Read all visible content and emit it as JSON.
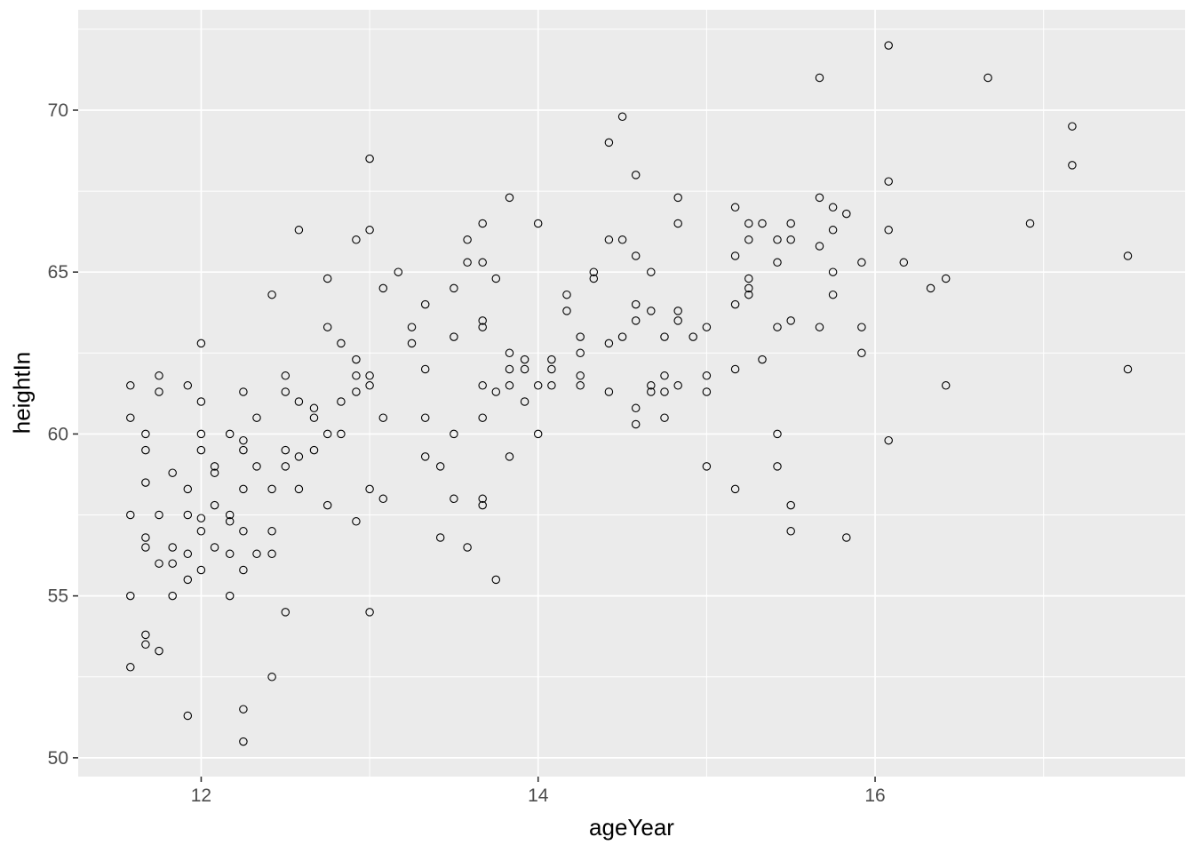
{
  "chart_data": {
    "type": "scatter",
    "title": "",
    "xlabel": "ageYear",
    "ylabel": "heightIn",
    "x_range": [
      11.27,
      17.84
    ],
    "y_range": [
      49.42,
      73.1
    ],
    "x_ticks": [
      12,
      14,
      16
    ],
    "y_ticks": [
      50,
      55,
      60,
      65,
      70
    ],
    "x_minor_ticks": [
      13,
      15,
      17
    ],
    "y_minor_ticks": [
      52.5,
      57.5,
      62.5,
      67.5,
      72.5
    ],
    "grid": true,
    "legend_position": "none",
    "marker": "open-circle",
    "colors": {
      "page_background": "#FFFFFF",
      "panel_background": "#EBEBEB",
      "gridline": "#FFFFFF",
      "tick_mark": "#333333",
      "tick_label": "#4D4D4D",
      "axis_title": "#000000",
      "point_stroke": "#000000"
    },
    "points": [
      [
        12.58,
        66.3
      ],
      [
        12.92,
        66.0
      ],
      [
        14.5,
        69.8
      ],
      [
        14.42,
        69.0
      ],
      [
        13.0,
        68.5
      ],
      [
        13.83,
        67.3
      ],
      [
        13.67,
        66.5
      ],
      [
        14.0,
        66.5
      ],
      [
        13.0,
        66.3
      ],
      [
        13.58,
        66.0
      ],
      [
        14.42,
        66.0
      ],
      [
        14.5,
        66.0
      ],
      [
        13.58,
        65.3
      ],
      [
        13.67,
        65.3
      ],
      [
        16.08,
        72.0
      ],
      [
        15.67,
        71.0
      ],
      [
        14.58,
        68.0
      ],
      [
        16.08,
        67.8
      ],
      [
        14.83,
        67.3
      ],
      [
        15.67,
        67.3
      ],
      [
        15.75,
        67.0
      ],
      [
        15.83,
        66.8
      ],
      [
        15.17,
        67.0
      ],
      [
        14.83,
        66.5
      ],
      [
        15.25,
        66.5
      ],
      [
        15.33,
        66.5
      ],
      [
        15.5,
        66.5
      ],
      [
        15.75,
        66.3
      ],
      [
        16.08,
        66.3
      ],
      [
        15.25,
        66.0
      ],
      [
        15.42,
        66.0
      ],
      [
        15.5,
        66.0
      ],
      [
        15.67,
        65.8
      ],
      [
        14.58,
        65.5
      ],
      [
        15.17,
        65.5
      ],
      [
        15.42,
        65.3
      ],
      [
        15.92,
        65.3
      ],
      [
        16.17,
        65.3
      ],
      [
        16.67,
        71.0
      ],
      [
        17.17,
        69.5
      ],
      [
        17.17,
        68.3
      ],
      [
        16.92,
        66.5
      ],
      [
        17.5,
        65.5
      ],
      [
        12.75,
        64.8
      ],
      [
        12.42,
        64.3
      ],
      [
        12.75,
        63.3
      ],
      [
        12.0,
        62.8
      ],
      [
        12.83,
        62.8
      ],
      [
        11.75,
        61.8
      ],
      [
        12.5,
        61.8
      ],
      [
        11.58,
        61.5
      ],
      [
        11.92,
        61.5
      ],
      [
        11.75,
        61.3
      ],
      [
        12.5,
        61.3
      ],
      [
        12.25,
        61.3
      ],
      [
        12.0,
        61.0
      ],
      [
        12.58,
        61.0
      ],
      [
        12.83,
        61.0
      ],
      [
        12.67,
        60.8
      ],
      [
        12.67,
        60.5
      ],
      [
        11.58,
        60.5
      ],
      [
        12.33,
        60.5
      ],
      [
        11.67,
        60.0
      ],
      [
        12.0,
        60.0
      ],
      [
        12.17,
        60.0
      ],
      [
        12.75,
        60.0
      ],
      [
        12.83,
        60.0
      ],
      [
        12.25,
        59.8
      ],
      [
        12.25,
        59.5
      ],
      [
        11.67,
        59.5
      ],
      [
        12.0,
        59.5
      ],
      [
        12.5,
        59.5
      ],
      [
        12.67,
        59.5
      ],
      [
        12.58,
        59.3
      ],
      [
        12.33,
        59.0
      ],
      [
        12.5,
        59.0
      ],
      [
        12.08,
        59.0
      ],
      [
        12.08,
        58.8
      ],
      [
        11.83,
        58.8
      ],
      [
        11.67,
        58.5
      ],
      [
        11.92,
        58.3
      ],
      [
        12.25,
        58.3
      ],
      [
        12.42,
        58.3
      ],
      [
        12.58,
        58.3
      ],
      [
        12.08,
        57.8
      ],
      [
        12.75,
        57.8
      ],
      [
        11.58,
        57.5
      ],
      [
        11.75,
        57.5
      ],
      [
        11.92,
        57.5
      ],
      [
        12.17,
        57.5
      ],
      [
        12.17,
        57.3
      ],
      [
        12.0,
        57.4
      ],
      [
        13.17,
        65.0
      ],
      [
        13.75,
        64.8
      ],
      [
        14.33,
        65.0
      ],
      [
        14.33,
        64.8
      ],
      [
        13.08,
        64.5
      ],
      [
        13.5,
        64.5
      ],
      [
        14.17,
        64.3
      ],
      [
        13.33,
        64.0
      ],
      [
        14.17,
        63.8
      ],
      [
        13.67,
        63.5
      ],
      [
        13.67,
        63.3
      ],
      [
        13.25,
        63.3
      ],
      [
        13.5,
        63.0
      ],
      [
        14.25,
        63.0
      ],
      [
        14.5,
        63.0
      ],
      [
        14.42,
        62.8
      ],
      [
        13.25,
        62.8
      ],
      [
        14.25,
        62.5
      ],
      [
        13.83,
        62.5
      ],
      [
        13.92,
        62.3
      ],
      [
        14.08,
        62.3
      ],
      [
        12.92,
        62.3
      ],
      [
        13.33,
        62.0
      ],
      [
        13.83,
        62.0
      ],
      [
        13.92,
        62.0
      ],
      [
        14.08,
        62.0
      ],
      [
        12.92,
        61.8
      ],
      [
        13.0,
        61.8
      ],
      [
        13.0,
        61.5
      ],
      [
        12.92,
        61.3
      ],
      [
        13.67,
        61.5
      ],
      [
        13.75,
        61.3
      ],
      [
        13.83,
        61.5
      ],
      [
        14.0,
        61.5
      ],
      [
        14.08,
        61.5
      ],
      [
        14.25,
        61.8
      ],
      [
        14.25,
        61.5
      ],
      [
        14.42,
        61.3
      ],
      [
        13.92,
        61.0
      ],
      [
        13.08,
        60.5
      ],
      [
        13.33,
        60.5
      ],
      [
        13.67,
        60.5
      ],
      [
        13.5,
        60.0
      ],
      [
        14.0,
        60.0
      ],
      [
        13.33,
        59.3
      ],
      [
        13.83,
        59.3
      ],
      [
        13.42,
        59.0
      ],
      [
        13.0,
        58.3
      ],
      [
        13.08,
        58.0
      ],
      [
        13.5,
        58.0
      ],
      [
        13.67,
        58.0
      ],
      [
        13.67,
        57.8
      ],
      [
        12.92,
        57.3
      ],
      [
        14.67,
        65.0
      ],
      [
        15.75,
        65.0
      ],
      [
        15.25,
        64.8
      ],
      [
        15.25,
        64.5
      ],
      [
        15.25,
        64.3
      ],
      [
        15.75,
        64.3
      ],
      [
        15.17,
        64.0
      ],
      [
        14.58,
        64.0
      ],
      [
        14.58,
        63.5
      ],
      [
        14.67,
        63.8
      ],
      [
        14.83,
        63.8
      ],
      [
        14.83,
        63.5
      ],
      [
        15.0,
        63.3
      ],
      [
        15.42,
        63.3
      ],
      [
        15.5,
        63.5
      ],
      [
        15.67,
        63.3
      ],
      [
        15.92,
        63.3
      ],
      [
        14.75,
        63.0
      ],
      [
        14.92,
        63.0
      ],
      [
        15.92,
        62.5
      ],
      [
        15.33,
        62.3
      ],
      [
        15.17,
        62.0
      ],
      [
        14.75,
        61.8
      ],
      [
        15.0,
        61.8
      ],
      [
        14.67,
        61.5
      ],
      [
        14.67,
        61.3
      ],
      [
        14.75,
        61.3
      ],
      [
        14.83,
        61.5
      ],
      [
        15.0,
        61.3
      ],
      [
        14.58,
        60.8
      ],
      [
        14.58,
        60.3
      ],
      [
        14.75,
        60.5
      ],
      [
        15.42,
        60.0
      ],
      [
        16.08,
        59.8
      ],
      [
        15.0,
        59.0
      ],
      [
        15.42,
        59.0
      ],
      [
        15.17,
        58.3
      ],
      [
        15.5,
        57.8
      ],
      [
        16.42,
        64.8
      ],
      [
        16.33,
        64.5
      ],
      [
        16.42,
        61.5
      ],
      [
        17.5,
        62.0
      ],
      [
        12.0,
        57.0
      ],
      [
        11.67,
        56.8
      ],
      [
        11.67,
        56.5
      ],
      [
        12.25,
        57.0
      ],
      [
        12.42,
        57.0
      ],
      [
        11.83,
        56.5
      ],
      [
        12.08,
        56.5
      ],
      [
        11.92,
        56.3
      ],
      [
        12.17,
        56.3
      ],
      [
        12.33,
        56.3
      ],
      [
        12.42,
        56.3
      ],
      [
        11.75,
        56.0
      ],
      [
        11.83,
        56.0
      ],
      [
        12.0,
        55.8
      ],
      [
        12.25,
        55.8
      ],
      [
        11.92,
        55.5
      ],
      [
        11.58,
        55.0
      ],
      [
        11.83,
        55.0
      ],
      [
        12.17,
        55.0
      ],
      [
        12.5,
        54.5
      ],
      [
        11.67,
        53.8
      ],
      [
        11.67,
        53.5
      ],
      [
        11.75,
        53.3
      ],
      [
        11.58,
        52.8
      ],
      [
        12.42,
        52.5
      ],
      [
        11.92,
        51.3
      ],
      [
        12.25,
        51.5
      ],
      [
        12.25,
        50.5
      ],
      [
        13.42,
        56.8
      ],
      [
        13.58,
        56.5
      ],
      [
        13.75,
        55.5
      ],
      [
        13.0,
        54.5
      ],
      [
        15.5,
        57.0
      ],
      [
        15.83,
        56.8
      ]
    ]
  }
}
